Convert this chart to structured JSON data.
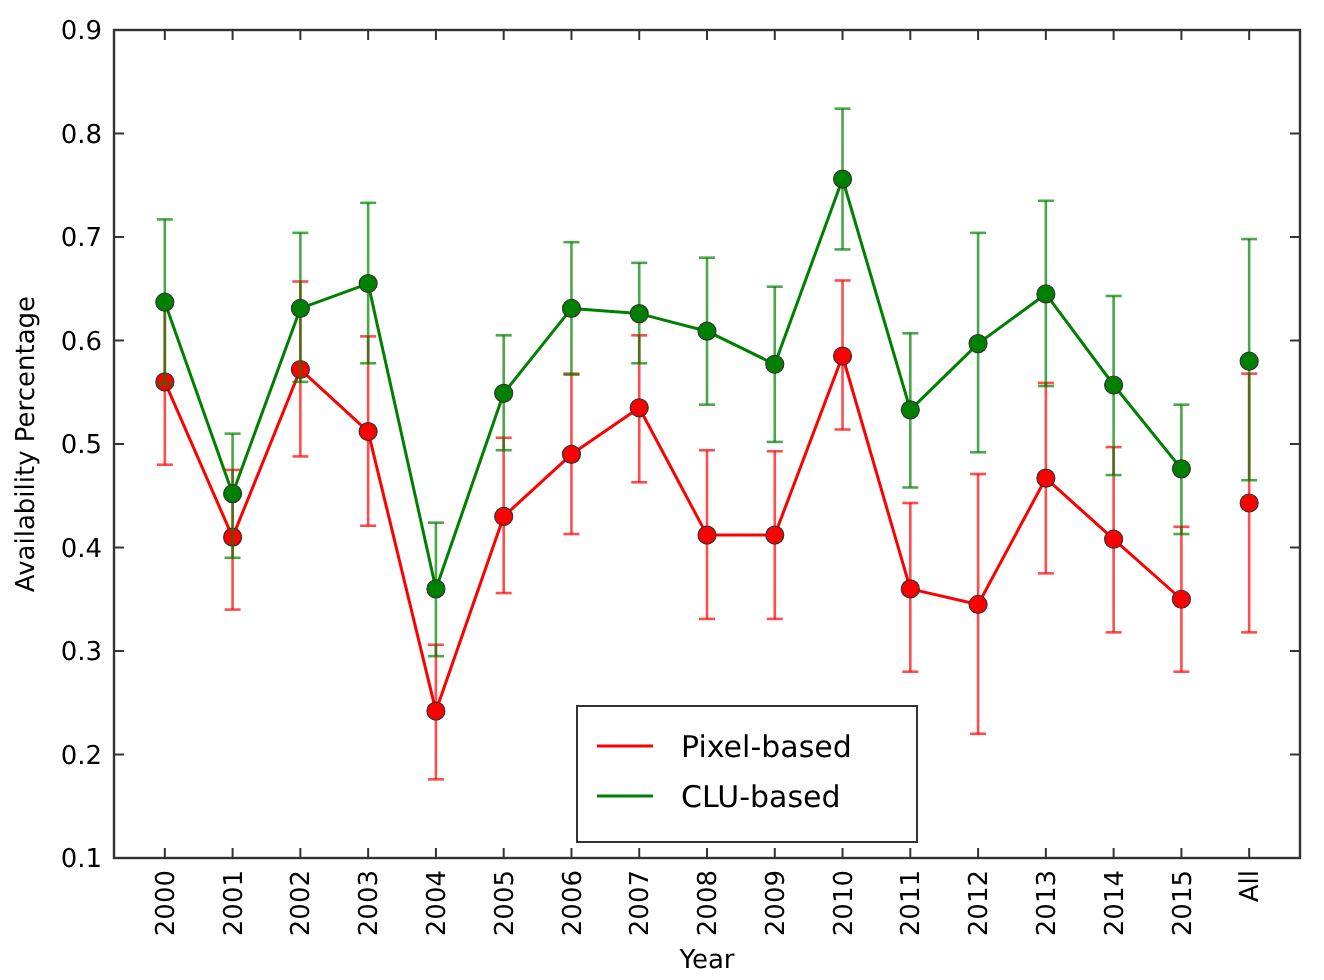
{
  "chart_data": {
    "type": "line",
    "xlabel": "Year",
    "ylabel": "Availability Percentage",
    "categories": [
      "2000",
      "2001",
      "2002",
      "2003",
      "2004",
      "2005",
      "2006",
      "2007",
      "2008",
      "2009",
      "2010",
      "2011",
      "2012",
      "2013",
      "2014",
      "2015",
      "All"
    ],
    "ylim": [
      0.1,
      0.9
    ],
    "yticks": [
      0.1,
      0.2,
      0.3,
      0.4,
      0.5,
      0.6,
      0.7,
      0.8,
      0.9
    ],
    "grid": false,
    "legend": "bottom",
    "marker": "circle",
    "line_style": "solid",
    "series": [
      {
        "name": "Pixel-based",
        "color": "#ff0000",
        "values": [
          0.56,
          0.41,
          0.572,
          0.512,
          0.242,
          0.43,
          0.49,
          0.535,
          0.412,
          0.412,
          0.585,
          0.36,
          0.345,
          0.467,
          0.408,
          0.35,
          null
        ],
        "errors": [
          [
            0.48,
            0.635
          ],
          [
            0.34,
            0.475
          ],
          [
            0.488,
            0.657
          ],
          [
            0.421,
            0.604
          ],
          [
            0.176,
            0.306
          ],
          [
            0.356,
            0.506
          ],
          [
            0.413,
            0.568
          ],
          [
            0.463,
            0.605
          ],
          [
            0.331,
            0.494
          ],
          [
            0.331,
            0.493
          ],
          [
            0.514,
            0.658
          ],
          [
            0.28,
            0.443
          ],
          [
            0.22,
            0.471
          ],
          [
            0.375,
            0.559
          ],
          [
            0.318,
            0.497
          ],
          [
            0.28,
            0.42
          ],
          null
        ]
      },
      {
        "name": "CLU-based",
        "color": "#008000",
        "values": [
          0.637,
          0.452,
          0.631,
          0.655,
          0.36,
          0.549,
          0.631,
          0.626,
          0.609,
          0.577,
          0.756,
          0.533,
          0.597,
          0.645,
          0.557,
          0.476,
          null
        ],
        "errors": [
          [
            0.558,
            0.717
          ],
          [
            0.39,
            0.51
          ],
          [
            0.56,
            0.704
          ],
          [
            0.578,
            0.733
          ],
          [
            0.295,
            0.424
          ],
          [
            0.494,
            0.605
          ],
          [
            0.567,
            0.695
          ],
          [
            0.578,
            0.675
          ],
          [
            0.538,
            0.68
          ],
          [
            0.502,
            0.652
          ],
          [
            0.688,
            0.824
          ],
          [
            0.458,
            0.607
          ],
          [
            0.492,
            0.704
          ],
          [
            0.556,
            0.735
          ],
          [
            0.47,
            0.643
          ],
          [
            0.413,
            0.538
          ],
          null
        ]
      },
      {
        "type": "scatter",
        "color": "#ff0000",
        "values": [
          null,
          null,
          null,
          null,
          null,
          null,
          null,
          null,
          null,
          null,
          null,
          null,
          null,
          null,
          null,
          null,
          0.443
        ],
        "errors": [
          null,
          null,
          null,
          null,
          null,
          null,
          null,
          null,
          null,
          null,
          null,
          null,
          null,
          null,
          null,
          null,
          [
            0.318,
            0.568
          ]
        ]
      },
      {
        "type": "scatter",
        "color": "#008000",
        "values": [
          null,
          null,
          null,
          null,
          null,
          null,
          null,
          null,
          null,
          null,
          null,
          null,
          null,
          null,
          null,
          null,
          0.58
        ],
        "errors": [
          null,
          null,
          null,
          null,
          null,
          null,
          null,
          null,
          null,
          null,
          null,
          null,
          null,
          null,
          null,
          null,
          [
            0.465,
            0.698
          ]
        ]
      }
    ]
  }
}
